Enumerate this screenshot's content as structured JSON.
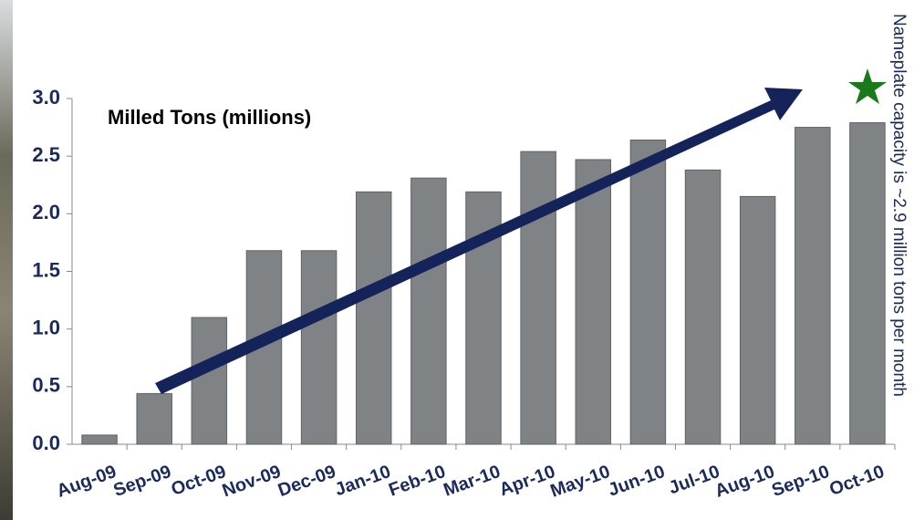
{
  "chart_data": {
    "type": "bar",
    "title": "Milled Tons (millions)",
    "annotation": "Nameplate capacity is ~2.9 million tons per month",
    "categories": [
      "Aug-09",
      "Sep-09",
      "Oct-09",
      "Nov-09",
      "Dec-09",
      "Jan-10",
      "Feb-10",
      "Mar-10",
      "Apr-10",
      "May-10",
      "Jun-10",
      "Jul-10",
      "Aug-10",
      "Sep-10",
      "Oct-10"
    ],
    "values": [
      0.08,
      0.44,
      1.1,
      1.68,
      1.68,
      2.19,
      2.31,
      2.19,
      2.54,
      2.47,
      2.64,
      2.38,
      2.15,
      2.75,
      2.79
    ],
    "color": "#7f8385",
    "ylim": [
      0,
      3.0
    ],
    "yticks": [
      {
        "value": 0,
        "label": "0.0"
      },
      {
        "value": 0.5,
        "label": "0.5"
      },
      {
        "value": 1,
        "label": "1.0"
      },
      {
        "value": 1.5,
        "label": "1.5"
      },
      {
        "value": 2,
        "label": "2.0"
      },
      {
        "value": 2.5,
        "label": "2.5"
      },
      {
        "value": 3,
        "label": "3.0"
      }
    ]
  }
}
